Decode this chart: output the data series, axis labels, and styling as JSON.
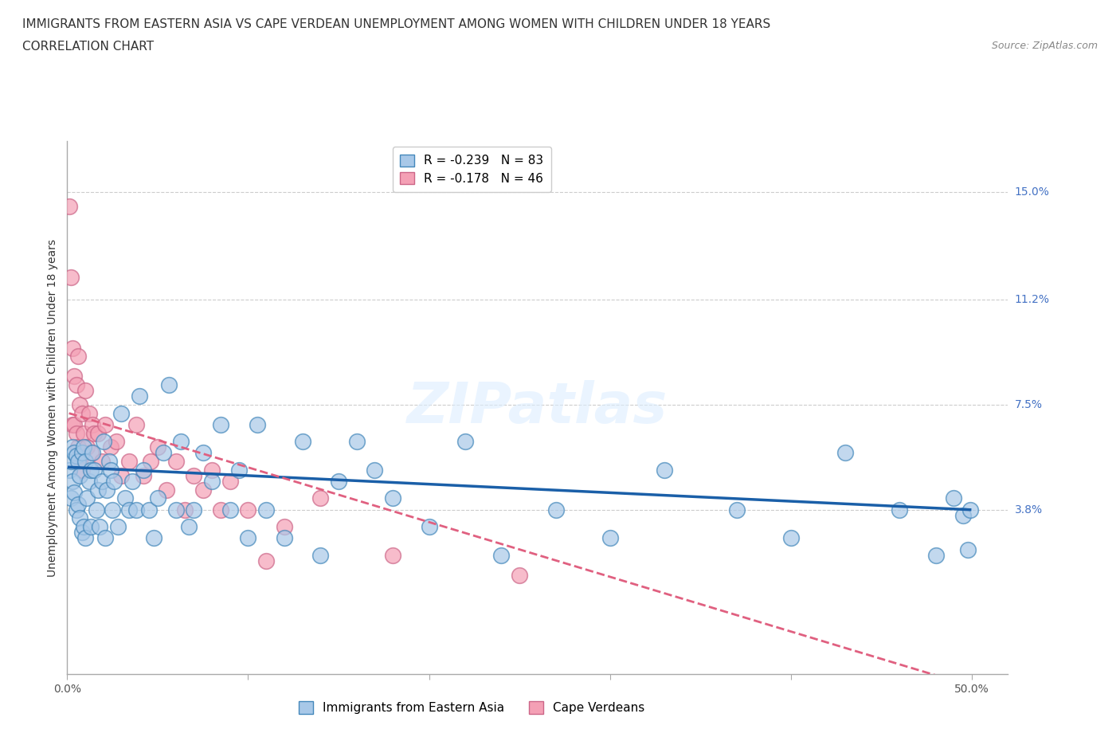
{
  "title_line1": "IMMIGRANTS FROM EASTERN ASIA VS CAPE VERDEAN UNEMPLOYMENT AMONG WOMEN WITH CHILDREN UNDER 18 YEARS",
  "title_line2": "CORRELATION CHART",
  "source_text": "Source: ZipAtlas.com",
  "ylabel": "Unemployment Among Women with Children Under 18 years",
  "xlim": [
    0.0,
    0.52
  ],
  "ylim": [
    -0.02,
    0.168
  ],
  "xticks": [
    0.0,
    0.1,
    0.2,
    0.3,
    0.4,
    0.5
  ],
  "xticklabels": [
    "0.0%",
    "",
    "",
    "",
    "",
    "50.0%"
  ],
  "ytick_values": [
    0.038,
    0.075,
    0.112,
    0.15
  ],
  "ytick_labels": [
    "3.8%",
    "7.5%",
    "11.2%",
    "15.0%"
  ],
  "blue_R": "-0.239",
  "blue_N": "83",
  "pink_R": "-0.178",
  "pink_N": "46",
  "blue_scatter_color": "#a8c8e8",
  "blue_edge_color": "#4488bb",
  "pink_scatter_color": "#f4a0b5",
  "pink_edge_color": "#cc6688",
  "blue_line_color": "#1a5fa8",
  "pink_line_color": "#e06080",
  "grid_color": "#cccccc",
  "watermark_text": "ZIPatlas",
  "legend_label_blue": "Immigrants from Eastern Asia",
  "legend_label_pink": "Cape Verdeans",
  "blue_scatter_x": [
    0.001,
    0.002,
    0.002,
    0.003,
    0.003,
    0.004,
    0.004,
    0.005,
    0.005,
    0.006,
    0.006,
    0.007,
    0.007,
    0.008,
    0.008,
    0.009,
    0.009,
    0.01,
    0.01,
    0.011,
    0.012,
    0.013,
    0.013,
    0.014,
    0.015,
    0.016,
    0.017,
    0.018,
    0.019,
    0.02,
    0.021,
    0.022,
    0.023,
    0.024,
    0.025,
    0.026,
    0.028,
    0.03,
    0.032,
    0.034,
    0.036,
    0.038,
    0.04,
    0.042,
    0.045,
    0.048,
    0.05,
    0.053,
    0.056,
    0.06,
    0.063,
    0.067,
    0.07,
    0.075,
    0.08,
    0.085,
    0.09,
    0.095,
    0.1,
    0.105,
    0.11,
    0.12,
    0.13,
    0.14,
    0.15,
    0.16,
    0.17,
    0.18,
    0.2,
    0.22,
    0.24,
    0.27,
    0.3,
    0.33,
    0.37,
    0.4,
    0.43,
    0.46,
    0.48,
    0.49,
    0.495,
    0.498,
    0.499
  ],
  "blue_scatter_y": [
    0.052,
    0.055,
    0.042,
    0.06,
    0.048,
    0.058,
    0.044,
    0.057,
    0.038,
    0.055,
    0.04,
    0.05,
    0.035,
    0.058,
    0.03,
    0.06,
    0.032,
    0.055,
    0.028,
    0.042,
    0.048,
    0.052,
    0.032,
    0.058,
    0.052,
    0.038,
    0.045,
    0.032,
    0.048,
    0.062,
    0.028,
    0.045,
    0.055,
    0.052,
    0.038,
    0.048,
    0.032,
    0.072,
    0.042,
    0.038,
    0.048,
    0.038,
    0.078,
    0.052,
    0.038,
    0.028,
    0.042,
    0.058,
    0.082,
    0.038,
    0.062,
    0.032,
    0.038,
    0.058,
    0.048,
    0.068,
    0.038,
    0.052,
    0.028,
    0.068,
    0.038,
    0.028,
    0.062,
    0.022,
    0.048,
    0.062,
    0.052,
    0.042,
    0.032,
    0.062,
    0.022,
    0.038,
    0.028,
    0.052,
    0.038,
    0.028,
    0.058,
    0.038,
    0.022,
    0.042,
    0.036,
    0.024,
    0.038
  ],
  "pink_scatter_x": [
    0.001,
    0.002,
    0.003,
    0.003,
    0.004,
    0.004,
    0.005,
    0.005,
    0.006,
    0.006,
    0.007,
    0.007,
    0.008,
    0.008,
    0.009,
    0.01,
    0.011,
    0.012,
    0.013,
    0.014,
    0.015,
    0.017,
    0.019,
    0.021,
    0.024,
    0.027,
    0.03,
    0.034,
    0.038,
    0.042,
    0.046,
    0.05,
    0.055,
    0.06,
    0.065,
    0.07,
    0.075,
    0.08,
    0.085,
    0.09,
    0.1,
    0.11,
    0.12,
    0.14,
    0.18,
    0.25
  ],
  "pink_scatter_y": [
    0.145,
    0.12,
    0.095,
    0.068,
    0.085,
    0.068,
    0.082,
    0.065,
    0.092,
    0.06,
    0.075,
    0.055,
    0.072,
    0.052,
    0.065,
    0.08,
    0.06,
    0.072,
    0.058,
    0.068,
    0.065,
    0.065,
    0.055,
    0.068,
    0.06,
    0.062,
    0.05,
    0.055,
    0.068,
    0.05,
    0.055,
    0.06,
    0.045,
    0.055,
    0.038,
    0.05,
    0.045,
    0.052,
    0.038,
    0.048,
    0.038,
    0.02,
    0.032,
    0.042,
    0.022,
    0.015
  ],
  "blue_trendline_x": [
    0.001,
    0.499
  ],
  "blue_trendline_y": [
    0.053,
    0.038
  ],
  "pink_trendline_x": [
    0.001,
    0.25
  ],
  "pink_trendline_y": [
    0.072,
    0.024
  ],
  "title_fontsize": 11,
  "subtitle_fontsize": 11,
  "axis_label_fontsize": 10,
  "tick_fontsize": 10,
  "legend_fontsize": 11
}
